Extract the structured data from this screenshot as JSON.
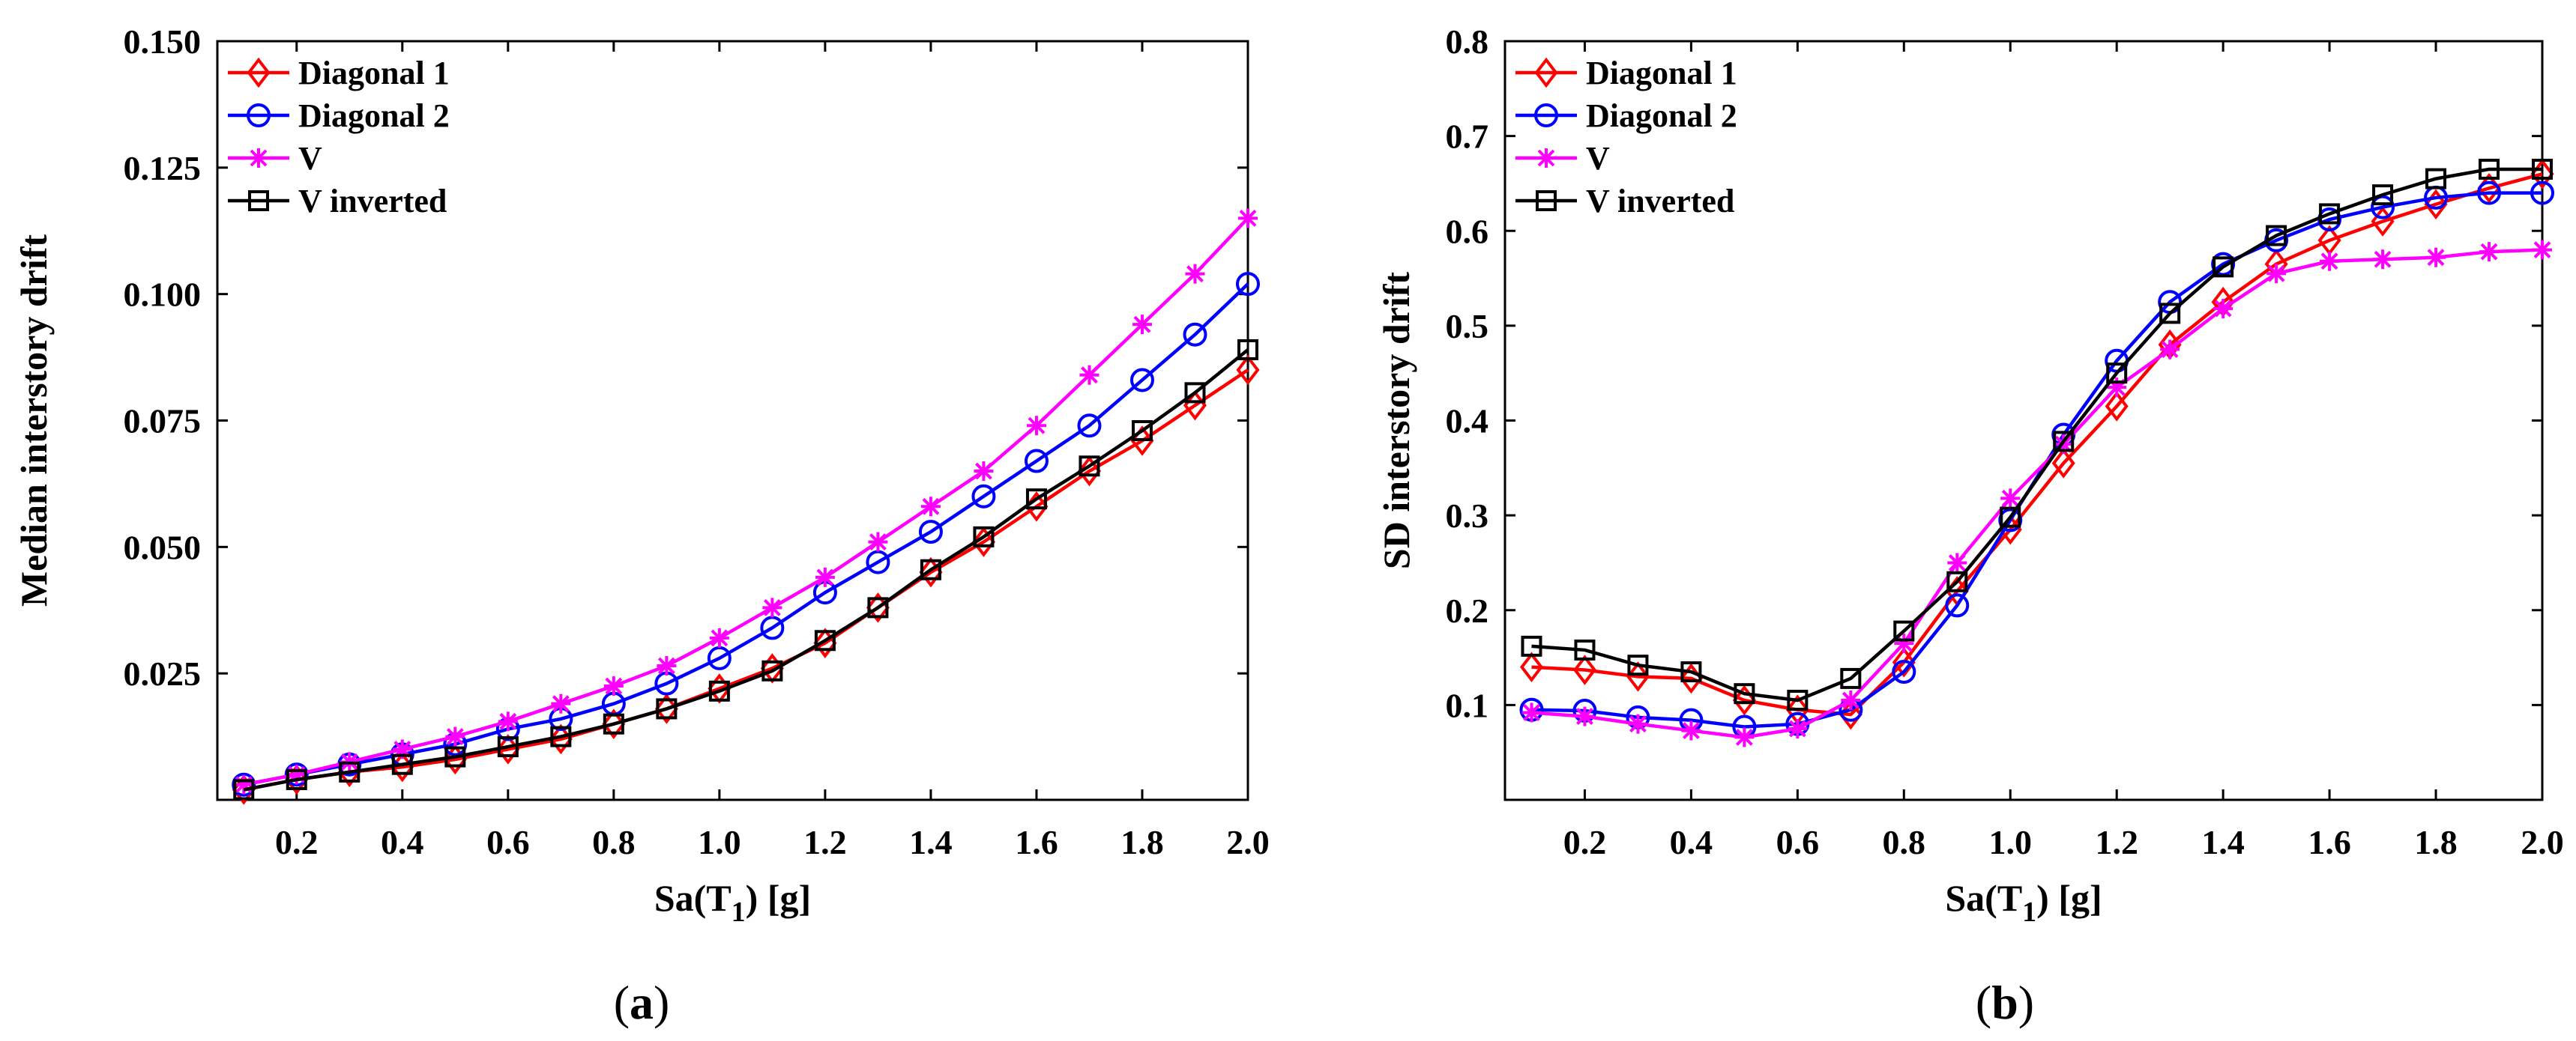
{
  "figure_colors": {
    "Diagonal 1": "#ff0000",
    "Diagonal 2": "#0000ff",
    "V": "#ff00ff",
    "V inverted": "#000000"
  },
  "chart_data": [
    {
      "panel_label": "a",
      "type": "line",
      "xlabel_main": "Sa(T",
      "xlabel_sub": "1",
      "xlabel_tail": ") [g]",
      "ylabel": "Median interstory drift",
      "xlim": [
        0.05,
        2.0
      ],
      "ylim": [
        0.0,
        0.15
      ],
      "xticks": [
        0.2,
        0.4,
        0.6,
        0.8,
        1.0,
        1.2,
        1.4,
        1.6,
        1.8,
        2.0
      ],
      "xtick_labels": [
        "0.2",
        "0.4",
        "0.6",
        "0.8",
        "1.0",
        "1.2",
        "1.4",
        "1.6",
        "1.8",
        "2.0"
      ],
      "yticks": [
        0.025,
        0.05,
        0.075,
        0.1,
        0.125,
        0.15
      ],
      "ytick_labels": [
        "0.025",
        "0.050",
        "0.075",
        "0.100",
        "0.125",
        "0.150"
      ],
      "legend_position": "top-left",
      "x": [
        0.1,
        0.2,
        0.3,
        0.4,
        0.5,
        0.6,
        0.7,
        0.8,
        0.9,
        1.0,
        1.1,
        1.2,
        1.3,
        1.4,
        1.5,
        1.6,
        1.7,
        1.8,
        1.9,
        2.0
      ],
      "series": [
        {
          "name": "Diagonal 1",
          "marker": "diamond",
          "values": [
            0.002,
            0.004,
            0.0055,
            0.0065,
            0.008,
            0.01,
            0.012,
            0.015,
            0.018,
            0.022,
            0.026,
            0.031,
            0.038,
            0.045,
            0.051,
            0.058,
            0.065,
            0.071,
            0.078,
            0.085
          ]
        },
        {
          "name": "Diagonal 2",
          "marker": "circle",
          "values": [
            0.003,
            0.005,
            0.007,
            0.009,
            0.011,
            0.014,
            0.016,
            0.019,
            0.023,
            0.028,
            0.034,
            0.041,
            0.047,
            0.053,
            0.06,
            0.067,
            0.074,
            0.083,
            0.092,
            0.102
          ]
        },
        {
          "name": "V",
          "marker": "asterisk",
          "values": [
            0.003,
            0.005,
            0.0075,
            0.01,
            0.0125,
            0.0155,
            0.019,
            0.0225,
            0.0265,
            0.032,
            0.038,
            0.044,
            0.051,
            0.058,
            0.065,
            0.074,
            0.084,
            0.094,
            0.104,
            0.115
          ]
        },
        {
          "name": "V inverted",
          "marker": "square",
          "values": [
            0.002,
            0.004,
            0.0055,
            0.007,
            0.0085,
            0.0105,
            0.0125,
            0.015,
            0.018,
            0.0215,
            0.0255,
            0.0315,
            0.038,
            0.0455,
            0.052,
            0.0595,
            0.066,
            0.073,
            0.0805,
            0.089
          ]
        }
      ]
    },
    {
      "panel_label": "b",
      "type": "line",
      "xlabel_main": "Sa(T",
      "xlabel_sub": "1",
      "xlabel_tail": ") [g]",
      "ylabel": "SD interstory drift",
      "xlim": [
        0.05,
        2.0
      ],
      "ylim": [
        0.0,
        0.8
      ],
      "xticks": [
        0.2,
        0.4,
        0.6,
        0.8,
        1.0,
        1.2,
        1.4,
        1.6,
        1.8,
        2.0
      ],
      "xtick_labels": [
        "0.2",
        "0.4",
        "0.6",
        "0.8",
        "1.0",
        "1.2",
        "1.4",
        "1.6",
        "1.8",
        "2.0"
      ],
      "yticks": [
        0.1,
        0.2,
        0.3,
        0.4,
        0.5,
        0.6,
        0.7,
        0.8
      ],
      "ytick_labels": [
        "0.1",
        "0.2",
        "0.3",
        "0.4",
        "0.5",
        "0.6",
        "0.7",
        "0.8"
      ],
      "legend_position": "top-left",
      "x": [
        0.1,
        0.2,
        0.3,
        0.4,
        0.5,
        0.6,
        0.7,
        0.8,
        0.9,
        1.0,
        1.1,
        1.2,
        1.3,
        1.4,
        1.5,
        1.6,
        1.7,
        1.8,
        1.9,
        2.0
      ],
      "series": [
        {
          "name": "Diagonal 1",
          "marker": "diamond",
          "values": [
            0.14,
            0.137,
            0.13,
            0.128,
            0.105,
            0.095,
            0.09,
            0.145,
            0.22,
            0.285,
            0.355,
            0.415,
            0.48,
            0.525,
            0.565,
            0.59,
            0.61,
            0.628,
            0.645,
            0.66
          ]
        },
        {
          "name": "Diagonal 2",
          "marker": "circle",
          "values": [
            0.095,
            0.094,
            0.087,
            0.084,
            0.077,
            0.08,
            0.095,
            0.135,
            0.205,
            0.295,
            0.385,
            0.463,
            0.525,
            0.565,
            0.59,
            0.612,
            0.625,
            0.635,
            0.64,
            0.64
          ]
        },
        {
          "name": "V",
          "marker": "asterisk",
          "values": [
            0.092,
            0.088,
            0.08,
            0.073,
            0.066,
            0.075,
            0.105,
            0.165,
            0.25,
            0.318,
            0.375,
            0.435,
            0.475,
            0.518,
            0.555,
            0.568,
            0.57,
            0.572,
            0.578,
            0.58
          ]
        },
        {
          "name": "V inverted",
          "marker": "square",
          "values": [
            0.162,
            0.158,
            0.142,
            0.135,
            0.112,
            0.105,
            0.128,
            0.178,
            0.23,
            0.298,
            0.378,
            0.45,
            0.513,
            0.562,
            0.595,
            0.618,
            0.638,
            0.655,
            0.665,
            0.665
          ]
        }
      ]
    }
  ]
}
